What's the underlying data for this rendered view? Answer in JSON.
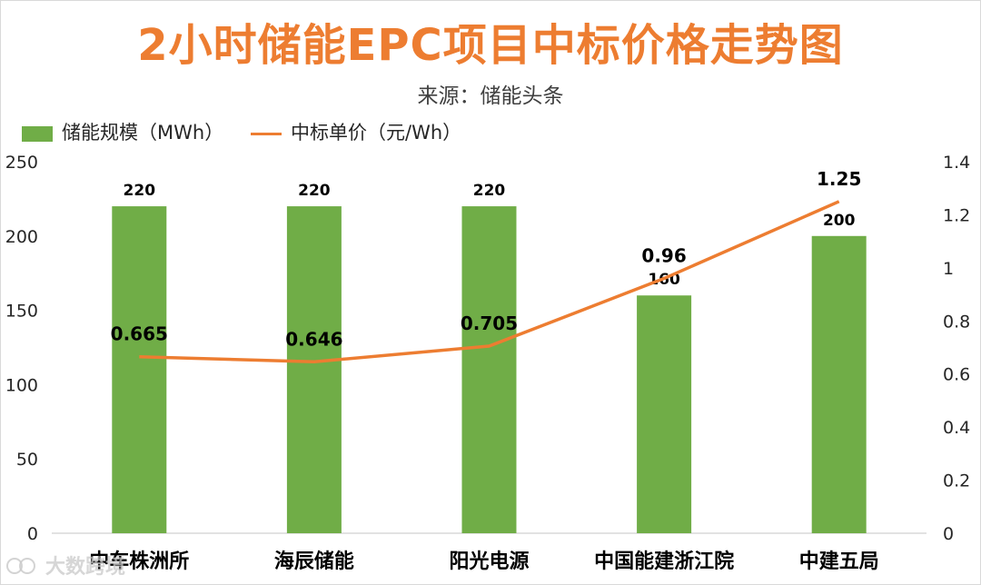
{
  "title": "2小时储能EPC项目中标价格走势图",
  "subtitle": "来源：储能头条",
  "watermark": "大数跨境",
  "colors": {
    "bar": "#70AD47",
    "line": "#ED7D31",
    "title": "#ED7D31",
    "axis": "#D9D9D9"
  },
  "chart_data": {
    "type": "bar+line",
    "categories": [
      "中车株洲所",
      "海辰储能",
      "阳光电源",
      "中国能建浙江院",
      "中建五局"
    ],
    "series": [
      {
        "name": "储能规模（MWh）",
        "type": "bar",
        "axis": "left",
        "values": [
          220,
          220,
          220,
          160,
          200
        ]
      },
      {
        "name": "中标单价（元/Wh）",
        "type": "line",
        "axis": "right",
        "values": [
          0.665,
          0.646,
          0.705,
          0.96,
          1.25
        ]
      }
    ],
    "y_left": {
      "min": 0,
      "max": 250,
      "ticks": [
        "0",
        "50",
        "100",
        "150",
        "200",
        "250"
      ]
    },
    "y_right": {
      "min": 0,
      "max": 1.4,
      "ticks": [
        "0",
        "0.2",
        "0.4",
        "0.6",
        "0.8",
        "1",
        "1.2",
        "1.4"
      ]
    },
    "bar_labels": [
      "220",
      "220",
      "220",
      "160",
      "200"
    ],
    "line_labels": [
      "0.665",
      "0.646",
      "0.705",
      "0.96",
      "1.25"
    ],
    "legend_position": "top-left",
    "grid": false
  }
}
